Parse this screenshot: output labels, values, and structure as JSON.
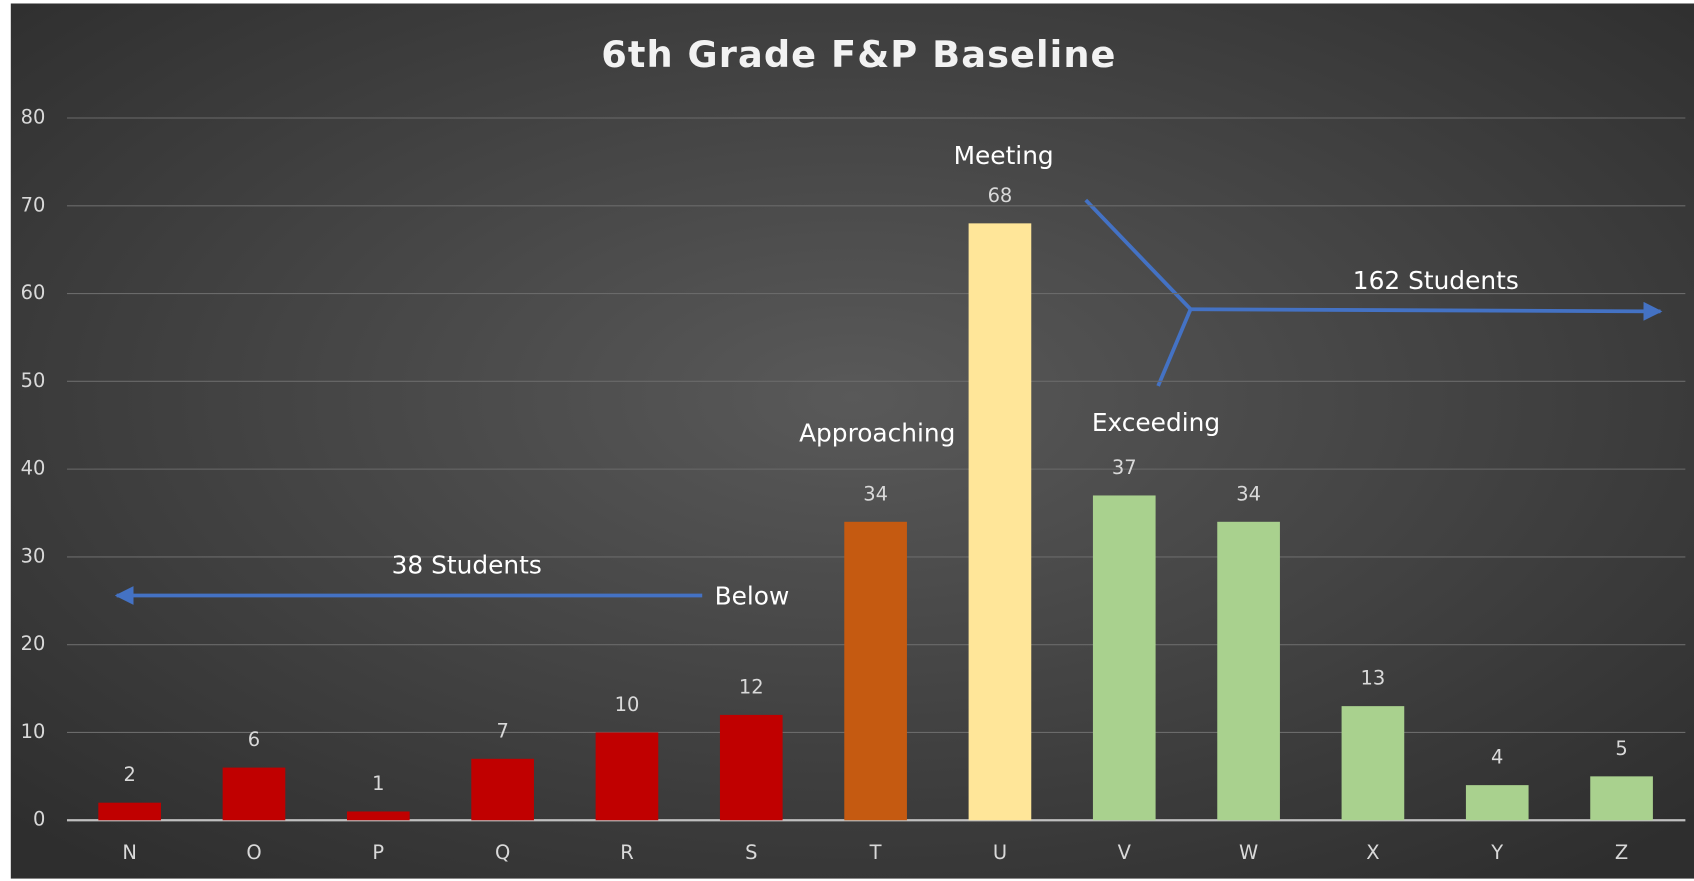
{
  "chart_data": {
    "type": "bar",
    "title": "6th Grade F&P Baseline",
    "categories": [
      "N",
      "O",
      "P",
      "Q",
      "R",
      "S",
      "T",
      "U",
      "V",
      "W",
      "X",
      "Y",
      "Z"
    ],
    "values": [
      2,
      6,
      1,
      7,
      10,
      12,
      34,
      68,
      37,
      34,
      13,
      4,
      5
    ],
    "colors": [
      "#c00000",
      "#c00000",
      "#c00000",
      "#c00000",
      "#c00000",
      "#c00000",
      "#c55a11",
      "#ffe699",
      "#a9d18e",
      "#a9d18e",
      "#a9d18e",
      "#a9d18e",
      "#a9d18e"
    ],
    "ylim": [
      0,
      80
    ],
    "yticks": [
      0,
      10,
      20,
      30,
      40,
      50,
      60,
      70,
      80
    ],
    "grid": true,
    "annotations": [
      "Meeting",
      "Approaching",
      "Exceeding",
      "Below",
      "38 Students",
      "162 Students"
    ]
  }
}
